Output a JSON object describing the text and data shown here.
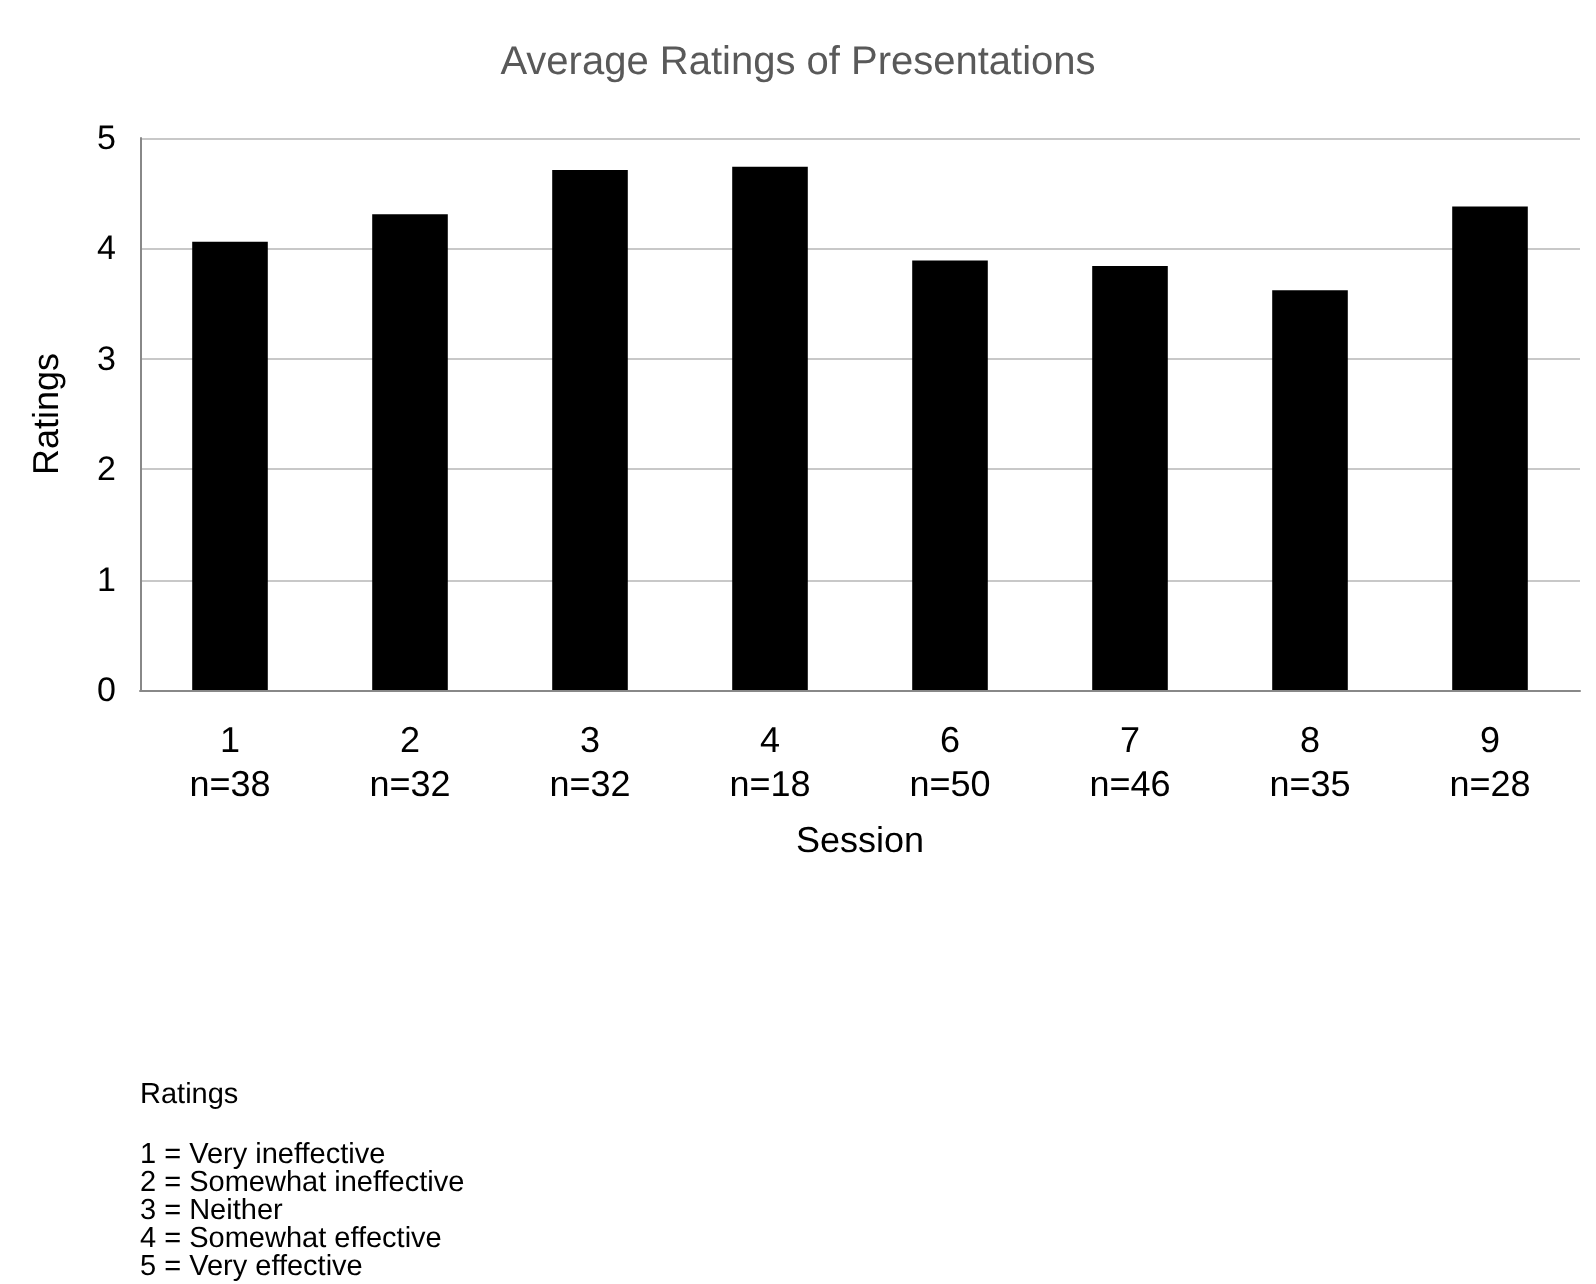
{
  "chart_data": {
    "type": "bar",
    "title": "Average Ratings of Presentations",
    "xlabel": "Session",
    "ylabel": "Ratings",
    "categories": [
      "1\nn=38",
      "2\nn=32",
      "3\nn=32",
      "4\nn=18",
      "6\nn=50",
      "7\nn=46",
      "8\nn=35",
      "9\nn=28"
    ],
    "values": [
      4.06,
      4.31,
      4.71,
      4.74,
      3.89,
      3.84,
      3.62,
      4.38
    ],
    "color": "#000000",
    "ylim": [
      0,
      5
    ],
    "yticks": [
      0,
      1,
      2,
      3,
      4,
      5
    ],
    "grid": "y",
    "annotations": [
      "Ratings",
      "1 = Very ineffective",
      "2 = Somewhat ineffective",
      "3 = Neither",
      "4 = Somewhat effective",
      "5 = Very effective"
    ]
  }
}
